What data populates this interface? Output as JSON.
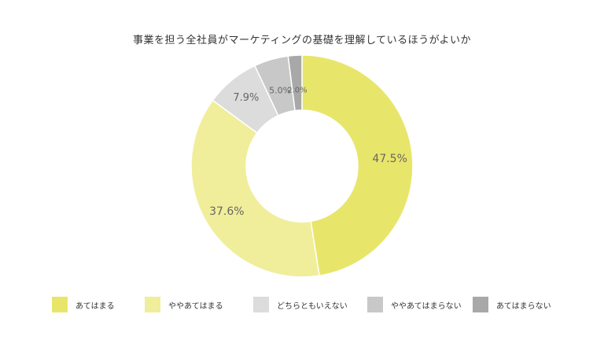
{
  "chart_data": {
    "type": "pie",
    "title": "事業を担う全社員がマーケティングの基礎を理解しているほうがよいか",
    "categories": [
      "あてはまる",
      "ややあてはまる",
      "どちらともいえない",
      "ややあてはまらない",
      "あてはまらない"
    ],
    "values": [
      47.5,
      37.6,
      7.9,
      5.0,
      2.0
    ],
    "labels": [
      "47.5%",
      "37.6%",
      "7.9%",
      "5.0%",
      "2.0%"
    ],
    "colors": [
      "#e8e66a",
      "#f0ee9a",
      "#dcdcdc",
      "#c8c8c8",
      "#a8a8a8"
    ],
    "donut": true,
    "legend_position": "bottom"
  }
}
